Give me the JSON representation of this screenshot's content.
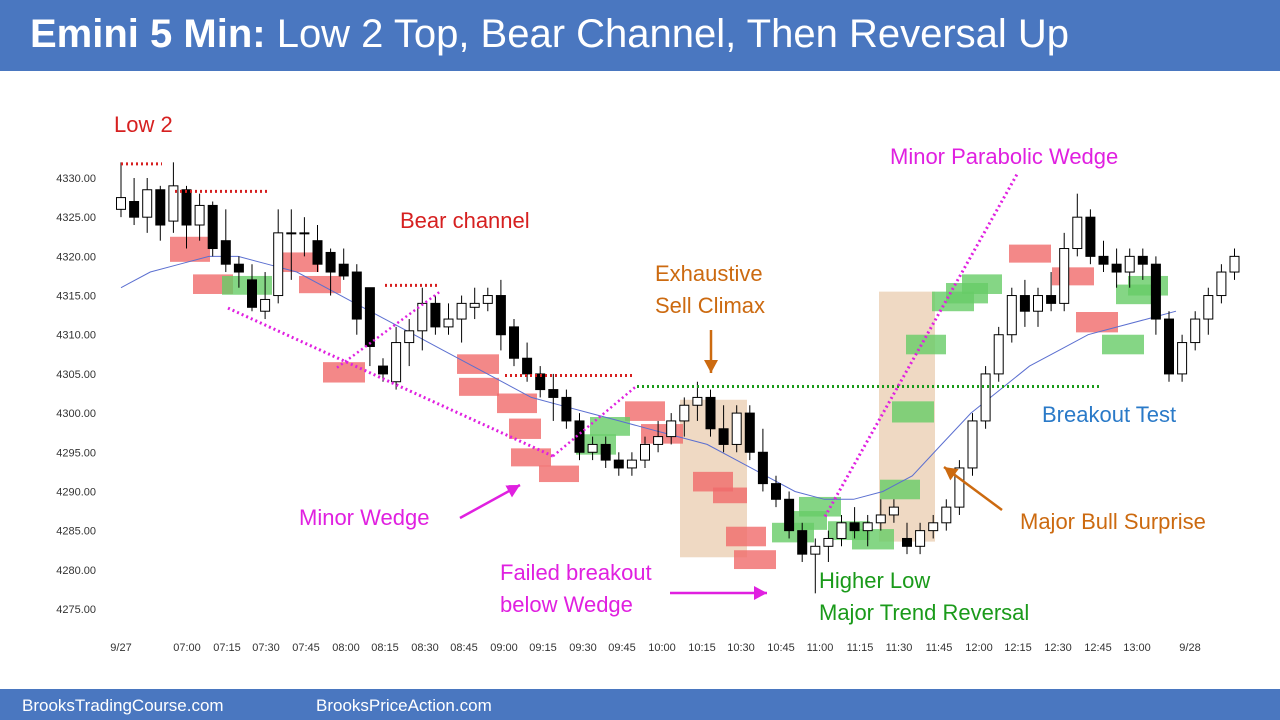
{
  "header": {
    "title_bold": "Emini 5 Min:",
    "title_rest": " Low 2 Top, Bear Channel, Then Reversal Up"
  },
  "footer": {
    "link1": "BrooksTradingCourse.com",
    "link2": "BrooksPriceAction.com"
  },
  "colors": {
    "header_bg": "#4a77c0",
    "bear_box": "#f06a6a",
    "bull_box": "#66cc66",
    "ema": "#5b6fd0",
    "red_text": "#d62020",
    "magenta": "#e020e0",
    "orange": "#cc6a10",
    "green_text": "#1a9a1a",
    "blue_text": "#2a7ac8",
    "tan_box": "#ecd2b8"
  },
  "annotations": {
    "low2": "Low 2",
    "bear_channel": "Bear channel",
    "exhaustive_1": "Exhaustive",
    "exhaustive_2": "Sell Climax",
    "minor_parabolic": "Minor Parabolic Wedge",
    "breakout_test": "Breakout Test",
    "minor_wedge": "Minor Wedge",
    "major_bull_surprise": "Major Bull Surprise",
    "failed_breakout_1": "Failed breakout",
    "failed_breakout_2": "below Wedge",
    "higher_low_1": "Higher Low",
    "higher_low_2": "Major Trend Reversal"
  },
  "chart_data": {
    "type": "candlestick",
    "title": "",
    "bar_interval_minutes": 5,
    "y_ticks": [
      "4330.00",
      "4325.00",
      "4320.00",
      "4315.00",
      "4310.00",
      "4305.00",
      "4300.00",
      "4295.00",
      "4290.00",
      "4285.00",
      "4280.00",
      "4275.00"
    ],
    "ylim": [
      4275,
      4330
    ],
    "x_ticks": [
      "9/27",
      "07:00",
      "07:15",
      "07:30",
      "07:45",
      "08:00",
      "08:15",
      "08:30",
      "08:45",
      "09:00",
      "09:15",
      "09:30",
      "09:45",
      "10:00",
      "10:15",
      "10:30",
      "10:45",
      "11:00",
      "11:15",
      "11:30",
      "11:45",
      "12:00",
      "12:15",
      "12:30",
      "12:45",
      "13:00",
      "9/28"
    ],
    "bars": [
      [
        4326.0,
        4332.0,
        4325.0,
        4327.5
      ],
      [
        4327.0,
        4330.0,
        4324.0,
        4325.0
      ],
      [
        4325.0,
        4330.0,
        4323.0,
        4328.5
      ],
      [
        4328.5,
        4329.0,
        4322.0,
        4324.0
      ],
      [
        4324.5,
        4332.0,
        4323.0,
        4329.0
      ],
      [
        4328.5,
        4329.0,
        4321.0,
        4324.0
      ],
      [
        4324.0,
        4328.0,
        4322.0,
        4326.5
      ],
      [
        4326.5,
        4327.0,
        4320.0,
        4321.0
      ],
      [
        4322.0,
        4326.0,
        4318.0,
        4319.0
      ],
      [
        4319.0,
        4320.0,
        4316.0,
        4318.0
      ],
      [
        4317.0,
        4319.0,
        4313.0,
        4313.5
      ],
      [
        4313.0,
        4318.0,
        4312.0,
        4314.5
      ],
      [
        4315.0,
        4326.0,
        4314.0,
        4323.0
      ],
      [
        4323.0,
        4326.0,
        4317.0,
        4323.0
      ],
      [
        4323.0,
        4325.0,
        4320.0,
        4323.0
      ],
      [
        4322.0,
        4324.0,
        4318.0,
        4319.0
      ],
      [
        4320.5,
        4321.0,
        4315.0,
        4318.0
      ],
      [
        4319.0,
        4321.0,
        4317.0,
        4317.5
      ],
      [
        4318.0,
        4319.0,
        4310.0,
        4312.0
      ],
      [
        4316.0,
        4316.0,
        4306.0,
        4308.5
      ],
      [
        4306.0,
        4307.0,
        4304.0,
        4305.0
      ],
      [
        4304.0,
        4311.0,
        4303.0,
        4309.0
      ],
      [
        4309.0,
        4312.0,
        4306.0,
        4310.5
      ],
      [
        4310.5,
        4316.0,
        4308.0,
        4314.0
      ],
      [
        4314.0,
        4315.0,
        4310.0,
        4311.0
      ],
      [
        4311.0,
        4314.0,
        4310.0,
        4312.0
      ],
      [
        4312.0,
        4315.0,
        4309.0,
        4314.0
      ],
      [
        4313.5,
        4316.0,
        4312.0,
        4314.0
      ],
      [
        4314.0,
        4316.0,
        4313.0,
        4315.0
      ],
      [
        4315.0,
        4317.0,
        4308.0,
        4310.0
      ],
      [
        4311.0,
        4312.0,
        4306.0,
        4307.0
      ],
      [
        4307.0,
        4309.0,
        4304.0,
        4305.0
      ],
      [
        4305.0,
        4306.0,
        4302.0,
        4303.0
      ],
      [
        4303.0,
        4305.0,
        4299.0,
        4302.0
      ],
      [
        4302.0,
        4303.0,
        4298.0,
        4299.0
      ],
      [
        4299.0,
        4300.0,
        4294.0,
        4295.0
      ],
      [
        4295.0,
        4297.0,
        4294.0,
        4296.0
      ],
      [
        4296.0,
        4297.0,
        4293.0,
        4294.0
      ],
      [
        4294.0,
        4295.0,
        4292.0,
        4293.0
      ],
      [
        4293.0,
        4295.0,
        4292.0,
        4294.0
      ],
      [
        4294.0,
        4297.0,
        4293.0,
        4296.0
      ],
      [
        4296.0,
        4299.0,
        4295.0,
        4297.0
      ],
      [
        4297.0,
        4300.0,
        4296.0,
        4299.0
      ],
      [
        4299.0,
        4302.0,
        4297.0,
        4301.0
      ],
      [
        4301.0,
        4304.0,
        4299.0,
        4302.0
      ],
      [
        4302.0,
        4303.0,
        4297.0,
        4298.0
      ],
      [
        4298.0,
        4301.0,
        4295.0,
        4296.0
      ],
      [
        4296.0,
        4301.0,
        4295.0,
        4300.0
      ],
      [
        4300.0,
        4301.0,
        4294.0,
        4295.0
      ],
      [
        4295.0,
        4298.0,
        4290.0,
        4291.0
      ],
      [
        4291.0,
        4292.0,
        4288.0,
        4289.0
      ],
      [
        4289.0,
        4290.0,
        4284.0,
        4285.0
      ],
      [
        4285.0,
        4286.0,
        4281.0,
        4282.0
      ],
      [
        4282.0,
        4284.0,
        4277.0,
        4283.0
      ],
      [
        4283.0,
        4285.0,
        4281.0,
        4284.0
      ],
      [
        4284.0,
        4287.0,
        4283.0,
        4286.0
      ],
      [
        4286.0,
        4288.0,
        4284.0,
        4285.0
      ],
      [
        4285.0,
        4287.0,
        4283.0,
        4286.0
      ],
      [
        4286.0,
        4289.0,
        4285.0,
        4287.0
      ],
      [
        4287.0,
        4289.0,
        4286.0,
        4288.0
      ],
      [
        4284.0,
        4286.0,
        4282.0,
        4283.0
      ],
      [
        4283.0,
        4286.0,
        4282.0,
        4285.0
      ],
      [
        4285.0,
        4287.0,
        4284.0,
        4286.0
      ],
      [
        4286.0,
        4289.0,
        4285.0,
        4288.0
      ],
      [
        4288.0,
        4294.0,
        4287.0,
        4293.0
      ],
      [
        4293.0,
        4300.0,
        4292.0,
        4299.0
      ],
      [
        4299.0,
        4306.0,
        4298.0,
        4305.0
      ],
      [
        4305.0,
        4311.0,
        4304.0,
        4310.0
      ],
      [
        4310.0,
        4316.0,
        4309.0,
        4315.0
      ],
      [
        4315.0,
        4317.0,
        4311.0,
        4313.0
      ],
      [
        4313.0,
        4316.0,
        4311.0,
        4315.0
      ],
      [
        4315.0,
        4318.0,
        4313.0,
        4314.0
      ],
      [
        4314.0,
        4323.0,
        4313.0,
        4321.0
      ],
      [
        4321.0,
        4328.0,
        4320.0,
        4325.0
      ],
      [
        4325.0,
        4326.0,
        4319.0,
        4320.0
      ],
      [
        4320.0,
        4322.0,
        4318.0,
        4319.0
      ],
      [
        4319.0,
        4321.0,
        4316.0,
        4318.0
      ],
      [
        4318.0,
        4321.0,
        4316.0,
        4320.0
      ],
      [
        4320.0,
        4321.0,
        4317.0,
        4319.0
      ],
      [
        4319.0,
        4320.0,
        4310.0,
        4312.0
      ],
      [
        4312.0,
        4313.0,
        4304.0,
        4305.0
      ],
      [
        4305.0,
        4310.0,
        4304.0,
        4309.0
      ],
      [
        4309.0,
        4313.0,
        4308.0,
        4312.0
      ],
      [
        4312.0,
        4316.0,
        4310.0,
        4315.0
      ],
      [
        4315.0,
        4319.0,
        4314.0,
        4318.0
      ],
      [
        4318.0,
        4321.0,
        4317.0,
        4320.0
      ]
    ],
    "ema": [
      4316,
      4318,
      4319,
      4320,
      4320,
      4319,
      4318,
      4316,
      4314,
      4312,
      4310,
      4308,
      4306,
      4304,
      4302,
      4301,
      4300,
      4299,
      4298,
      4297,
      4296,
      4294,
      4292,
      4290,
      4289,
      4289,
      4290,
      4292,
      4296,
      4300,
      4303,
      4306,
      4308,
      4310,
      4311,
      4312,
      4313
    ]
  }
}
